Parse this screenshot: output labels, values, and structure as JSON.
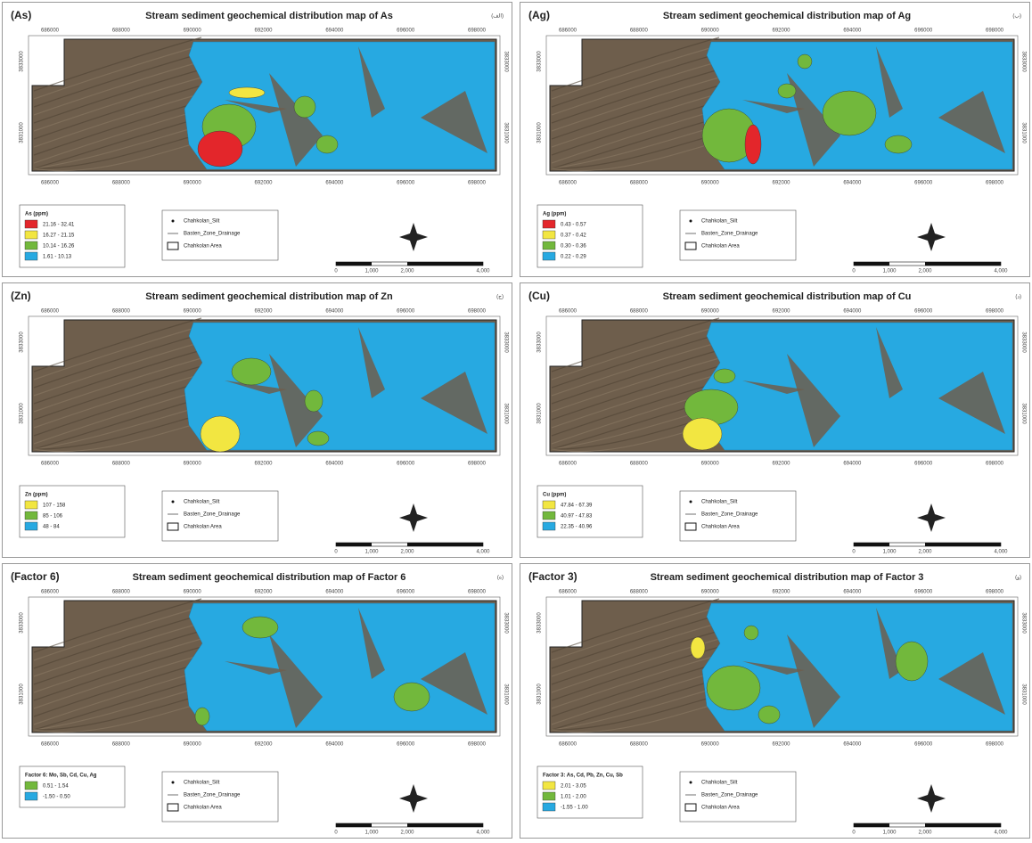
{
  "panels": [
    {
      "label": "(As)",
      "title": "Stream sediment geochemical distribution map of As",
      "corner": "(الف)",
      "top_ticks": [
        "686000",
        "688000",
        "690000",
        "692000",
        "694000",
        "696000",
        "698000"
      ],
      "bottom_ticks": [
        "686000",
        "688000",
        "690000",
        "692000",
        "694000",
        "696000",
        "698000"
      ],
      "left_ticks": [
        "3833000",
        "3831000"
      ],
      "right_ticks": [
        "3833000",
        "3831000"
      ],
      "legend": {
        "title": "As (ppm)",
        "items": [
          {
            "label": "21.16 - 32.41",
            "color": "#e3262b"
          },
          {
            "label": "16.27 - 21.15",
            "color": "#f2e641"
          },
          {
            "label": "10.14 - 16.26",
            "color": "#72b83c"
          },
          {
            "label": "1.61 - 10.13",
            "color": "#27a9e1"
          }
        ]
      },
      "symbols": [
        "Chahkolan_Silt",
        "Basten_Zone_Drainage",
        "Chahkolan Area"
      ],
      "scale": [
        "0",
        "1,000",
        "2,000",
        "4,000"
      ]
    },
    {
      "label": "(Ag)",
      "title": "Stream sediment geochemical distribution map of Ag",
      "corner": "(ب)",
      "top_ticks": [
        "686000",
        "688000",
        "690000",
        "692000",
        "694000",
        "696000",
        "698000"
      ],
      "bottom_ticks": [
        "686000",
        "688000",
        "690000",
        "692000",
        "694000",
        "696000",
        "698000"
      ],
      "left_ticks": [
        "3833000",
        "3831000"
      ],
      "right_ticks": [
        "3833000",
        "3831000"
      ],
      "legend": {
        "title": "Ag (ppm)",
        "items": [
          {
            "label": "0.43 - 0.57",
            "color": "#e3262b"
          },
          {
            "label": "0.37 - 0.42",
            "color": "#f2e641"
          },
          {
            "label": "0.30 - 0.36",
            "color": "#72b83c"
          },
          {
            "label": "0.22 - 0.29",
            "color": "#27a9e1"
          }
        ]
      },
      "symbols": [
        "Chahkolan_Silt",
        "Basten_Zone_Drainage",
        "Chahkolan Area"
      ],
      "scale": [
        "0",
        "1,000",
        "2,000",
        "4,000"
      ]
    },
    {
      "label": "(Zn)",
      "title": "Stream sediment geochemical distribution map of Zn",
      "corner": "(ج)",
      "top_ticks": [
        "686000",
        "688000",
        "690000",
        "692000",
        "694000",
        "696000",
        "698000"
      ],
      "bottom_ticks": [
        "686000",
        "688000",
        "690000",
        "692000",
        "694000",
        "696000",
        "698000"
      ],
      "left_ticks": [
        "3833000",
        "3831000"
      ],
      "right_ticks": [
        "3833000",
        "3831000"
      ],
      "legend": {
        "title": "Zn (ppm)",
        "items": [
          {
            "label": "107 - 158",
            "color": "#f2e641"
          },
          {
            "label": "85 - 106",
            "color": "#72b83c"
          },
          {
            "label": "48 - 84",
            "color": "#27a9e1"
          }
        ]
      },
      "symbols": [
        "Chahkolan_Silt",
        "Basten_Zone_Drainage",
        "Chahkolan Area"
      ],
      "scale": [
        "0",
        "1,000",
        "2,000",
        "4,000"
      ]
    },
    {
      "label": "(Cu)",
      "title": "Stream sediment geochemical distribution map of Cu",
      "corner": "(د)",
      "top_ticks": [
        "686000",
        "688000",
        "690000",
        "692000",
        "694000",
        "696000",
        "698000"
      ],
      "bottom_ticks": [
        "686000",
        "688000",
        "690000",
        "692000",
        "694000",
        "696000",
        "698000"
      ],
      "left_ticks": [
        "3833000",
        "3831000"
      ],
      "right_ticks": [
        "3833000",
        "3831000"
      ],
      "legend": {
        "title": "Cu (ppm)",
        "items": [
          {
            "label": "47.84 - 67.39",
            "color": "#f2e641"
          },
          {
            "label": "40.97 - 47.83",
            "color": "#72b83c"
          },
          {
            "label": "22.35 - 40.96",
            "color": "#27a9e1"
          }
        ]
      },
      "symbols": [
        "Chahkolan_Silt",
        "Basten_Zone_Drainage",
        "Chahkolan Area"
      ],
      "scale": [
        "0",
        "1,000",
        "2,000",
        "4,000"
      ]
    },
    {
      "label": "(Factor 6)",
      "title": "Stream sediment geochemical distribution map of Factor 6",
      "corner": "(ه)",
      "top_ticks": [
        "686000",
        "688000",
        "690000",
        "692000",
        "694000",
        "696000",
        "698000"
      ],
      "bottom_ticks": [
        "686000",
        "688000",
        "690000",
        "692000",
        "694000",
        "696000",
        "698000"
      ],
      "left_ticks": [
        "3833000",
        "3831000"
      ],
      "right_ticks": [
        "3833000",
        "3831000"
      ],
      "legend": {
        "title": "Factor 6: Mo, Sb, Cd, Cu, Ag",
        "items": [
          {
            "label": "0.51 - 1.54",
            "color": "#72b83c"
          },
          {
            "label": "-1.50 - 0.50",
            "color": "#27a9e1"
          }
        ]
      },
      "symbols": [
        "Chahkolan_Silt",
        "Basten_Zone_Drainage",
        "Chahkolan Area"
      ],
      "scale": [
        "0",
        "1,000",
        "2,000",
        "4,000"
      ]
    },
    {
      "label": "(Factor 3)",
      "title": "Stream sediment geochemical distribution map of Factor 3",
      "corner": "(و)",
      "top_ticks": [
        "686000",
        "688000",
        "690000",
        "692000",
        "694000",
        "696000",
        "698000"
      ],
      "bottom_ticks": [
        "686000",
        "688000",
        "690000",
        "692000",
        "694000",
        "696000",
        "698000"
      ],
      "left_ticks": [
        "3833000",
        "3831000"
      ],
      "right_ticks": [
        "3833000",
        "3831000"
      ],
      "legend": {
        "title": "Factor 3: As, Cd, Pb, Zn, Cu, Sb",
        "items": [
          {
            "label": "2.01 - 3.05",
            "color": "#f2e641"
          },
          {
            "label": "1.01 - 2.00",
            "color": "#72b83c"
          },
          {
            "label": "-1.55 - 1.00",
            "color": "#27a9e1"
          }
        ]
      },
      "symbols": [
        "Chahkolan_Silt",
        "Basten_Zone_Drainage",
        "Chahkolan Area"
      ],
      "scale": [
        "0",
        "1,000",
        "2,000",
        "4,000"
      ]
    }
  ]
}
